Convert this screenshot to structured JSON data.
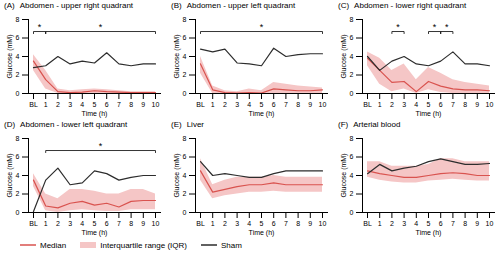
{
  "chart_data": [
    {
      "type": "line",
      "title": "Abdomen - upper right quadrant",
      "annotations": [
        "(A)"
      ],
      "categories": [
        "BL",
        "1",
        "2",
        "3",
        "4",
        "5",
        "6",
        "7",
        "8",
        "9",
        "10"
      ],
      "series": [
        {
          "name": "Median",
          "type": "line",
          "color": "#d9534f",
          "values": [
            3.5,
            1.5,
            0.2,
            0.1,
            0.15,
            0.3,
            0.2,
            0.15,
            0.1,
            0.1,
            0.1
          ]
        },
        {
          "name": "Interquartile range (IQR)",
          "type": "area",
          "color": "#f5c6c6",
          "low": [
            2.5,
            0.5,
            0.0,
            0.0,
            0.0,
            0.0,
            0.0,
            0.0,
            0.0,
            0.0,
            0.0
          ],
          "high": [
            4.2,
            2.5,
            0.5,
            0.3,
            0.4,
            0.5,
            0.4,
            0.3,
            0.2,
            0.2,
            0.2
          ]
        },
        {
          "name": "Sham",
          "type": "line",
          "color": "#2d2d2d",
          "values": [
            2.8,
            3.0,
            4.0,
            3.2,
            3.5,
            3.3,
            4.4,
            3.2,
            3.0,
            3.2,
            3.2
          ]
        }
      ],
      "brackets": [
        {
          "from": "BL",
          "to": "1",
          "y": 6.7,
          "label": "*"
        },
        {
          "from": "1",
          "to": "10",
          "y": 6.7,
          "label": "*"
        }
      ],
      "xlabel": "Time (h)",
      "ylabel": "Glucose (mM)",
      "ylim": [
        0,
        8
      ],
      "yticks": [
        0,
        2,
        4,
        6,
        8
      ],
      "grid": false,
      "legend": "lower left"
    },
    {
      "type": "line",
      "title": "Abdomen - upper left quadrant",
      "annotations": [
        "(B)"
      ],
      "categories": [
        "BL",
        "1",
        "2",
        "3",
        "4",
        "5",
        "6",
        "7",
        "8",
        "9",
        "10"
      ],
      "series": [
        {
          "name": "Median",
          "type": "line",
          "color": "#d9534f",
          "values": [
            3.2,
            0.4,
            0.1,
            0.05,
            0.1,
            0.05,
            0.5,
            0.4,
            0.3,
            0.3,
            0.4
          ]
        },
        {
          "name": "Interquartile range (IQR)",
          "type": "area",
          "color": "#f5c6c6",
          "low": [
            2.2,
            0.0,
            0.0,
            0.0,
            0.0,
            0.0,
            0.0,
            0.0,
            0.0,
            0.0,
            0.0
          ],
          "high": [
            4.0,
            0.8,
            0.3,
            0.2,
            0.5,
            0.3,
            1.2,
            1.0,
            0.8,
            0.7,
            0.6
          ]
        },
        {
          "name": "Sham",
          "type": "line",
          "color": "#2d2d2d",
          "values": [
            4.8,
            4.5,
            4.8,
            3.3,
            3.2,
            3.0,
            4.9,
            4.0,
            4.2,
            4.3,
            4.3
          ]
        }
      ],
      "brackets": [
        {
          "from": "BL",
          "to": "10",
          "y": 6.7,
          "label": "*"
        }
      ],
      "xlabel": "Time (h)",
      "ylabel": "Glucose (mM)",
      "ylim": [
        0,
        8
      ],
      "yticks": [
        0,
        2,
        4,
        6,
        8
      ],
      "grid": false,
      "legend": "lower left"
    },
    {
      "type": "line",
      "title": "Abdomen - lower right quadrant",
      "annotations": [
        "(C)"
      ],
      "categories": [
        "BL",
        "1",
        "2",
        "3",
        "4",
        "5",
        "6",
        "7",
        "8",
        "9",
        "10"
      ],
      "series": [
        {
          "name": "Median",
          "type": "line",
          "color": "#d9534f",
          "values": [
            3.8,
            2.5,
            1.2,
            1.3,
            0.2,
            1.3,
            0.8,
            0.5,
            0.4,
            0.4,
            0.3
          ]
        },
        {
          "name": "Interquartile range (IQR)",
          "type": "area",
          "color": "#f5c6c6",
          "low": [
            3.0,
            1.0,
            0.2,
            0.5,
            0.0,
            0.4,
            0.1,
            0.0,
            0.0,
            0.0,
            0.0
          ],
          "high": [
            4.5,
            3.8,
            2.5,
            3.2,
            1.5,
            2.8,
            2.2,
            1.5,
            1.2,
            1.0,
            0.8
          ]
        },
        {
          "name": "Sham",
          "type": "line",
          "color": "#2d2d2d",
          "values": [
            4.0,
            2.5,
            3.5,
            4.0,
            3.2,
            3.0,
            3.5,
            4.5,
            3.2,
            3.2,
            3.0
          ]
        }
      ],
      "brackets": [
        {
          "from": "2",
          "to": "3",
          "y": 6.7,
          "label": "*"
        },
        {
          "from": "5",
          "to": "6",
          "y": 6.7,
          "label": "*"
        },
        {
          "from": "6",
          "to": "7",
          "y": 6.7,
          "label": "*"
        }
      ],
      "xlabel": "Time (h)",
      "ylabel": "Glucose (mM)",
      "ylim": [
        0,
        8
      ],
      "yticks": [
        0,
        2,
        4,
        6,
        8
      ],
      "grid": false,
      "legend": "lower left"
    },
    {
      "type": "line",
      "title": "Abdomen - lower left quadrant",
      "annotations": [
        "(D)"
      ],
      "categories": [
        "BL",
        "1",
        "2",
        "3",
        "4",
        "5",
        "6",
        "7",
        "8",
        "9",
        "10"
      ],
      "series": [
        {
          "name": "Median",
          "type": "line",
          "color": "#d9534f",
          "values": [
            3.5,
            0.7,
            0.5,
            1.0,
            1.2,
            0.8,
            1.0,
            0.6,
            1.2,
            1.3,
            1.3
          ]
        },
        {
          "name": "Interquartile range (IQR)",
          "type": "area",
          "color": "#f5c6c6",
          "low": [
            2.8,
            0.2,
            0.0,
            0.2,
            0.3,
            0.2,
            0.1,
            0.1,
            0.3,
            0.3,
            0.3
          ],
          "high": [
            4.2,
            2.0,
            1.5,
            2.5,
            2.5,
            2.3,
            2.0,
            2.0,
            2.5,
            2.5,
            2.0
          ]
        },
        {
          "name": "Sham",
          "type": "line",
          "color": "#2d2d2d",
          "values": [
            0.1,
            3.5,
            4.8,
            3.0,
            3.2,
            4.5,
            4.2,
            3.5,
            3.8,
            4.0,
            4.0
          ]
        }
      ],
      "brackets": [
        {
          "from": "1",
          "to": "10",
          "y": 6.7,
          "label": "*"
        }
      ],
      "xlabel": "Time (h)",
      "ylabel": "Glucose (mM)",
      "ylim": [
        0,
        8
      ],
      "yticks": [
        0,
        2,
        4,
        6,
        8
      ],
      "grid": false,
      "legend": "lower left"
    },
    {
      "type": "line",
      "title": "Liver",
      "annotations": [
        "(E)"
      ],
      "categories": [
        "BL",
        "1",
        "2",
        "3",
        "4",
        "5",
        "6",
        "7",
        "8",
        "9",
        "10"
      ],
      "series": [
        {
          "name": "Median",
          "type": "line",
          "color": "#d9534f",
          "values": [
            4.5,
            2.2,
            2.5,
            2.8,
            3.0,
            3.0,
            3.2,
            3.0,
            3.0,
            3.0,
            3.0
          ]
        },
        {
          "name": "Interquartile range (IQR)",
          "type": "area",
          "color": "#f5c6c6",
          "low": [
            3.5,
            1.5,
            1.8,
            2.0,
            2.2,
            2.2,
            2.3,
            2.2,
            2.2,
            2.2,
            2.2
          ],
          "high": [
            5.8,
            3.0,
            3.5,
            3.8,
            3.8,
            3.8,
            4.0,
            3.8,
            3.8,
            3.8,
            3.8
          ]
        },
        {
          "name": "Sham",
          "type": "line",
          "color": "#2d2d2d",
          "values": [
            5.5,
            4.0,
            4.2,
            4.0,
            3.8,
            3.8,
            4.2,
            4.5,
            4.5,
            4.5,
            4.5
          ]
        }
      ],
      "brackets": [],
      "xlabel": "Time (h)",
      "ylabel": "Glucose (mM)",
      "ylim": [
        0,
        8
      ],
      "yticks": [
        0,
        2,
        4,
        6,
        8
      ],
      "grid": false,
      "legend": "lower left"
    },
    {
      "type": "line",
      "title": "Arterial blood",
      "annotations": [
        "(F)"
      ],
      "categories": [
        "BL",
        "1",
        "2",
        "3",
        "4",
        "5",
        "6",
        "7",
        "8",
        "9",
        "10"
      ],
      "series": [
        {
          "name": "Median",
          "type": "line",
          "color": "#d9534f",
          "values": [
            4.5,
            4.2,
            4.0,
            3.8,
            3.8,
            4.0,
            4.2,
            4.3,
            4.2,
            4.0,
            4.0
          ]
        },
        {
          "name": "Interquartile range (IQR)",
          "type": "area",
          "color": "#f5c6c6",
          "low": [
            3.8,
            3.5,
            3.3,
            3.2,
            3.2,
            3.4,
            3.5,
            3.6,
            3.5,
            3.4,
            3.4
          ],
          "high": [
            5.5,
            5.5,
            5.0,
            5.0,
            5.0,
            5.2,
            5.8,
            5.8,
            5.5,
            5.5,
            5.5
          ]
        },
        {
          "name": "Sham",
          "type": "line",
          "color": "#2d2d2d",
          "values": [
            4.2,
            5.2,
            4.5,
            4.8,
            5.0,
            5.5,
            5.8,
            5.5,
            5.2,
            5.2,
            5.3
          ]
        }
      ],
      "brackets": [],
      "xlabel": "Time (h)",
      "ylabel": "Glucose (mM)",
      "ylim": [
        0,
        8
      ],
      "yticks": [
        0,
        2,
        4,
        6,
        8
      ],
      "grid": false,
      "legend": "lower left"
    }
  ]
}
